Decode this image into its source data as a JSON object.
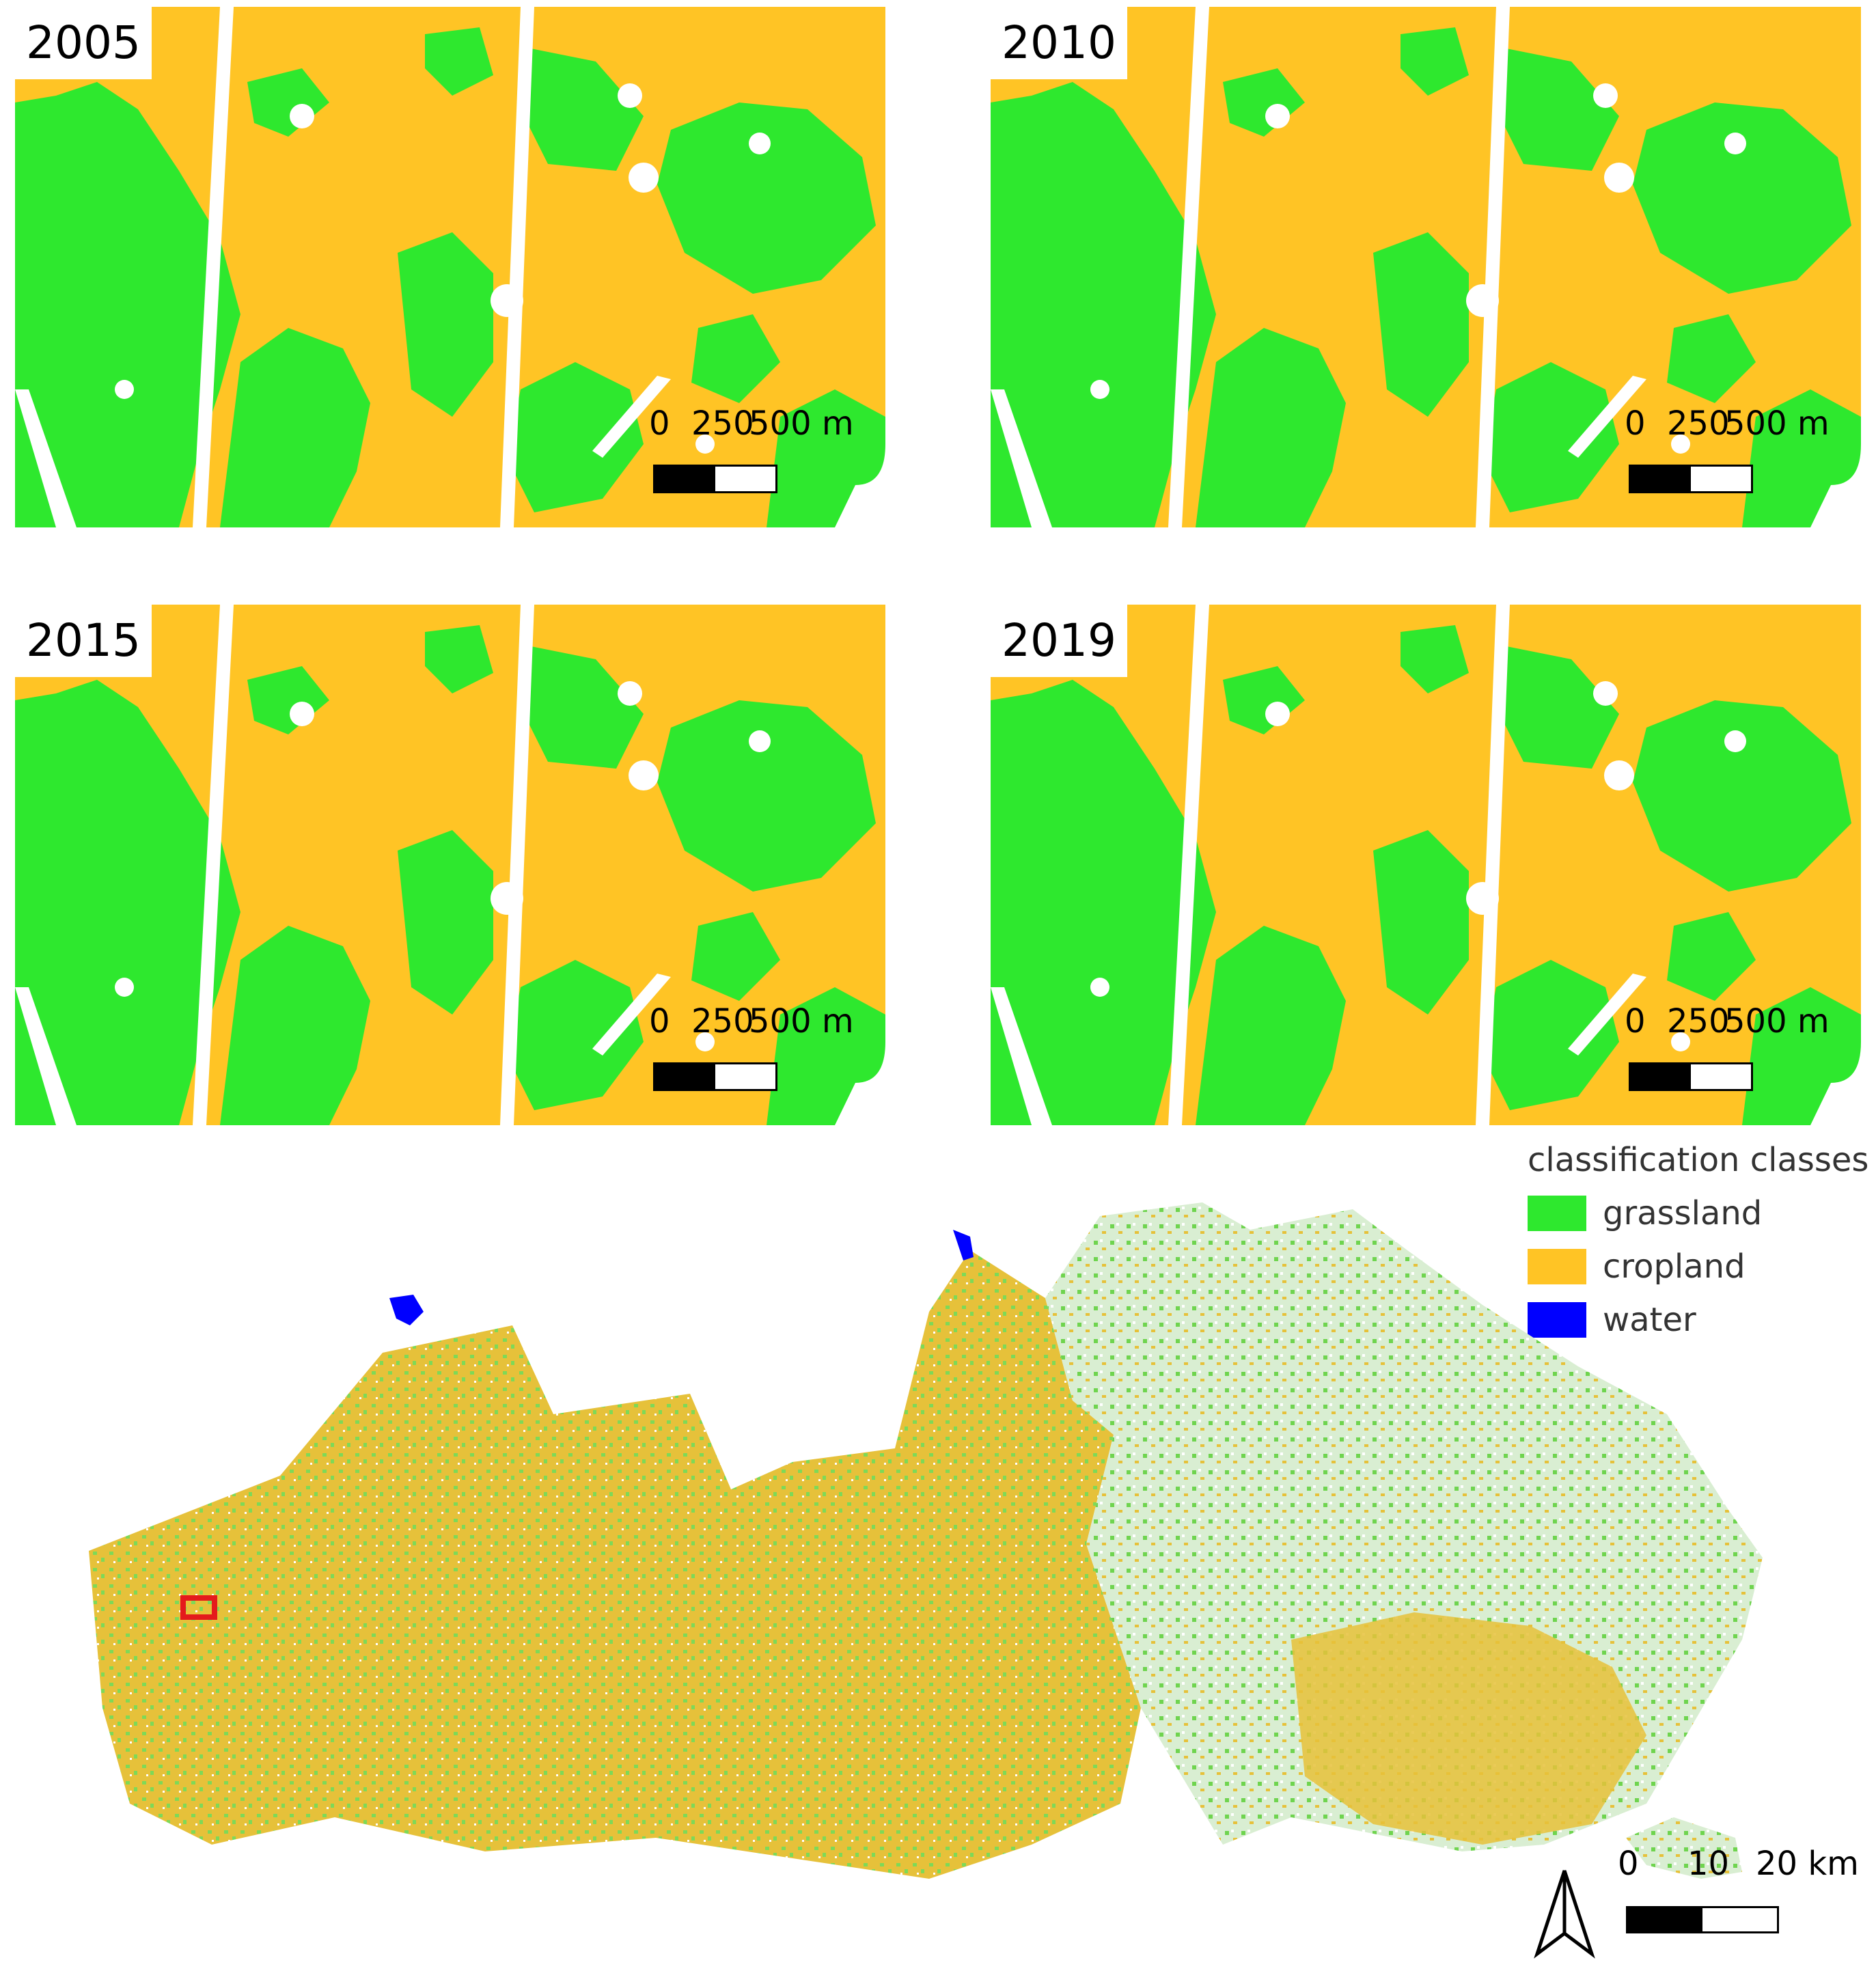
{
  "panels": [
    {
      "year": "2005"
    },
    {
      "year": "2010"
    },
    {
      "year": "2015"
    },
    {
      "year": "2019"
    }
  ],
  "panel_scale": {
    "labels": [
      "0",
      "250",
      "500 m"
    ]
  },
  "legend": {
    "title": "classification classes",
    "items": [
      {
        "label": "grassland",
        "color": "#2ee82e"
      },
      {
        "label": "cropland",
        "color": "#ffc425"
      },
      {
        "label": "water",
        "color": "#0000ff"
      }
    ]
  },
  "overview_scale": {
    "labels": [
      "0",
      "10",
      "20 km"
    ]
  },
  "colors": {
    "grassland": "#2ee82e",
    "cropland": "#ffc425",
    "water": "#0000ff",
    "highlight": "#e41a1c",
    "nodata": "#ffffff"
  },
  "icons": {
    "north": "north-arrow-icon"
  }
}
